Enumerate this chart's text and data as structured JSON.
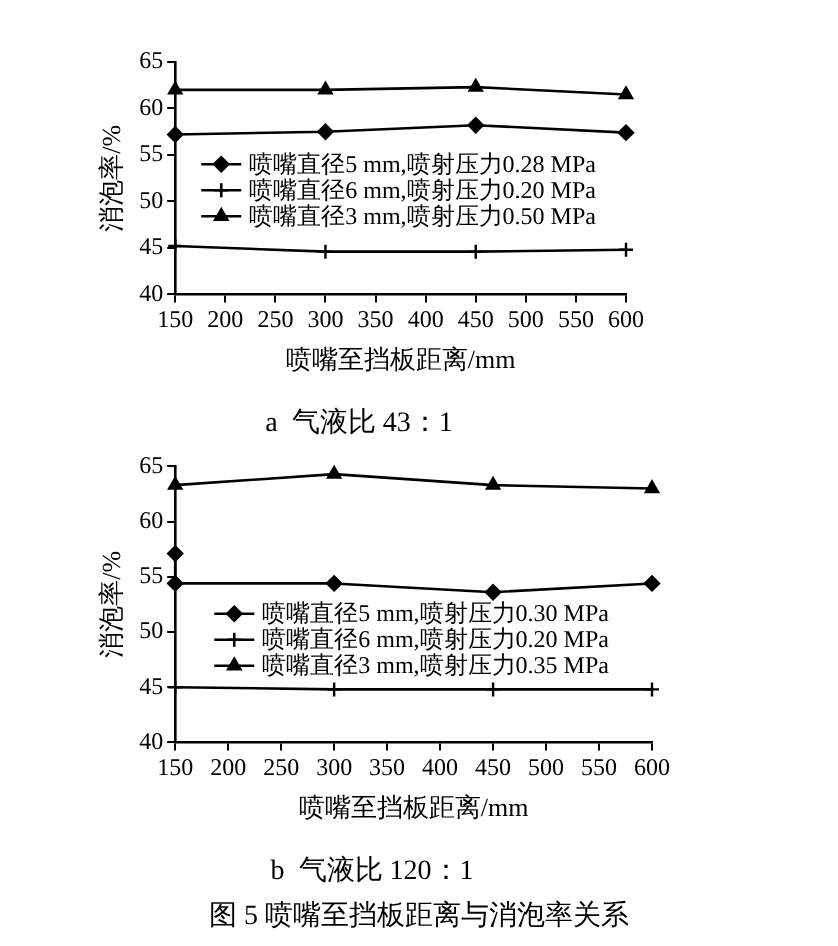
{
  "chart_data": [
    {
      "type": "line",
      "title": "a  气液比 43：1",
      "xlabel": "喷嘴至挡板距离/mm",
      "ylabel": "消泡率/%",
      "x": [
        150,
        300,
        450,
        600
      ],
      "xlim": [
        150,
        600
      ],
      "xticks": [
        150,
        200,
        250,
        300,
        350,
        400,
        450,
        500,
        550,
        600
      ],
      "ylim": [
        40,
        65
      ],
      "yticks": [
        40,
        45,
        50,
        55,
        60,
        65
      ],
      "grid": false,
      "legend": "center",
      "line_style": "solid",
      "series": [
        {
          "name": "喷嘴直径5 mm,喷射压力0.28 MPa",
          "color": "#000000",
          "marker": "diamond",
          "values": [
            57.2,
            57.5,
            58.2,
            57.4
          ]
        },
        {
          "name": "喷嘴直径6 mm,喷射压力0.20 MPa",
          "color": "#000000",
          "marker": "cross",
          "values": [
            45.2,
            44.6,
            44.6,
            44.8
          ]
        },
        {
          "name": "喷嘴直径3 mm,喷射压力0.50 MPa",
          "color": "#000000",
          "marker": "triangle",
          "values": [
            62.0,
            62.0,
            62.3,
            61.5
          ]
        }
      ]
    },
    {
      "type": "line",
      "title": "b  气液比 120：1",
      "xlabel": "喷嘴至挡板距离/mm",
      "ylabel": "消泡率/%",
      "x": [
        150,
        300,
        450,
        600
      ],
      "xlim": [
        150,
        600
      ],
      "xticks": [
        150,
        200,
        250,
        300,
        350,
        400,
        450,
        500,
        550,
        600
      ],
      "ylim": [
        40,
        65
      ],
      "yticks": [
        40,
        45,
        50,
        55,
        60,
        65
      ],
      "grid": false,
      "legend": "center",
      "line_style": "solid",
      "annotations": [
        "图 5  喷嘴至挡板距离与消泡率关系"
      ],
      "series": [
        {
          "name": "喷嘴直径5 mm,喷射压力0.30 MPa",
          "color": "#000000",
          "marker": "diamond",
          "x": [
            150,
            150,
            300,
            450,
            600
          ],
          "values": [
            57.1,
            54.4,
            54.4,
            53.6,
            54.4
          ]
        },
        {
          "name": "喷嘴直径6 mm,喷射压力0.20 MPa",
          "color": "#000000",
          "marker": "cross",
          "values": [
            45.0,
            44.8,
            44.8,
            44.8
          ]
        },
        {
          "name": "喷嘴直径3 mm,喷射压力0.35 MPa",
          "color": "#000000",
          "marker": "triangle",
          "values": [
            63.3,
            64.3,
            63.3,
            63.0
          ]
        }
      ]
    }
  ]
}
